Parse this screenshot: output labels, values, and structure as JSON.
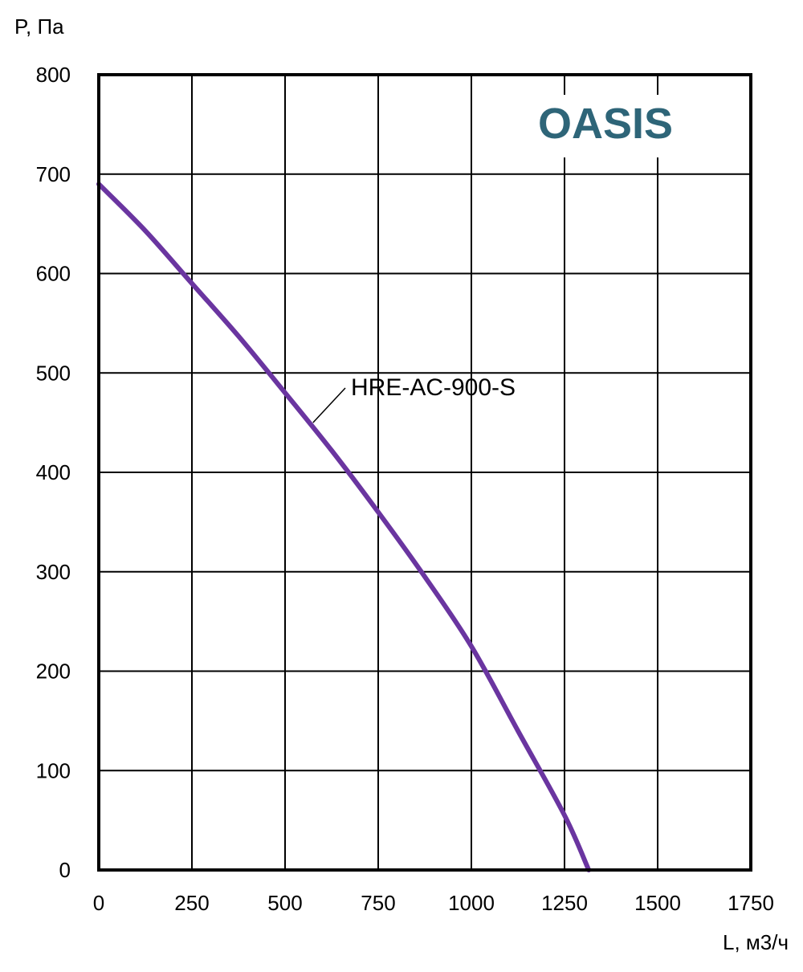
{
  "chart_data": {
    "type": "line",
    "title": "",
    "xlabel": "L, м3/ч",
    "ylabel": "P, Па",
    "xlim": [
      0,
      1750
    ],
    "ylim": [
      0,
      800
    ],
    "x_ticks": [
      0,
      250,
      500,
      750,
      1000,
      1250,
      1500,
      1750
    ],
    "y_ticks": [
      0,
      100,
      200,
      300,
      400,
      500,
      600,
      700,
      800
    ],
    "x_tick_labels": [
      "0",
      "250",
      "500",
      "750",
      "1000",
      "1250",
      "1500",
      "1750"
    ],
    "y_tick_labels": [
      "0",
      "100",
      "200",
      "300",
      "400",
      "500",
      "600",
      "700",
      "800"
    ],
    "grid": true,
    "series": [
      {
        "name": "HRE-AC-900-S",
        "color": "#6A35A0",
        "x": [
          0,
          125,
          250,
          375,
          500,
          625,
          750,
          875,
          1000,
          1125,
          1250,
          1315
        ],
        "y": [
          690,
          643,
          590,
          537,
          480,
          422,
          360,
          295,
          225,
          140,
          55,
          0
        ]
      }
    ]
  },
  "logo": {
    "text": "OASIS",
    "color": "#2E6578"
  }
}
